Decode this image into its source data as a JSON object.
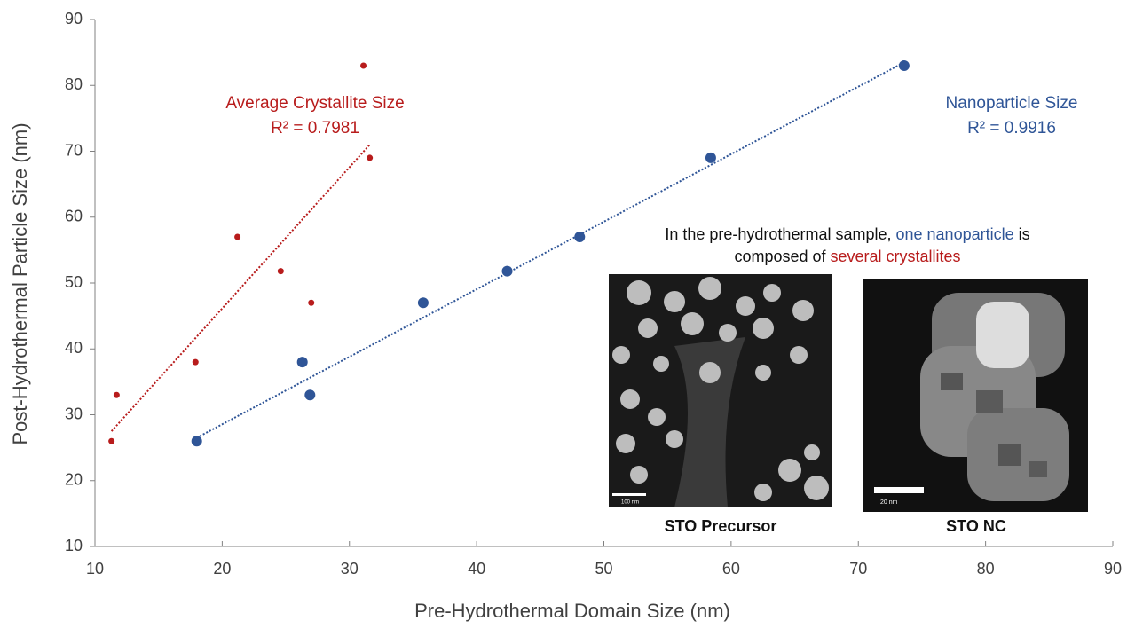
{
  "chart_data": {
    "type": "scatter",
    "xlabel": "Pre-Hydrothermal Domain Size (nm)",
    "ylabel": "Post-Hydrothermal  Particle Size (nm)",
    "xlim": [
      10,
      90
    ],
    "xticks": [
      10,
      20,
      30,
      40,
      50,
      60,
      70,
      80,
      90
    ],
    "ylim": [
      10,
      90
    ],
    "yticks": [
      10,
      20,
      30,
      40,
      50,
      60,
      70,
      80,
      90
    ],
    "grid": false,
    "series": [
      {
        "name": "Average Crystallite Size",
        "r2": "R² = 0.7981",
        "color": "#b81c1c",
        "x": [
          11.3,
          11.7,
          17.9,
          21.2,
          24.6,
          27.0,
          31.1,
          31.6
        ],
        "values": [
          26,
          33,
          38,
          57,
          51.8,
          47,
          83,
          69
        ],
        "trendline": {
          "x": [
            11.3,
            31.6
          ],
          "values": [
            27.5,
            71
          ]
        }
      },
      {
        "name": "Nanoparticle Size",
        "r2": "R² = 0.9916",
        "color": "#2f5597",
        "x": [
          18.0,
          26.3,
          26.9,
          35.8,
          42.4,
          48.1,
          58.4,
          73.6
        ],
        "values": [
          26,
          38,
          33,
          47,
          51.8,
          57,
          69,
          83
        ],
        "trendline": {
          "x": [
            18.0,
            73.6
          ],
          "values": [
            26.5,
            83.5
          ]
        }
      }
    ],
    "note": {
      "part1": "In the pre-hydrothermal sample,",
      "part2": "one nanoparticle",
      "part3": "is",
      "part4": "composed of",
      "part5": "several crystallites"
    },
    "insets": [
      {
        "label": "STO Precursor",
        "scale": "100 nm"
      },
      {
        "label": "STO NC",
        "scale": "20 nm"
      }
    ]
  }
}
